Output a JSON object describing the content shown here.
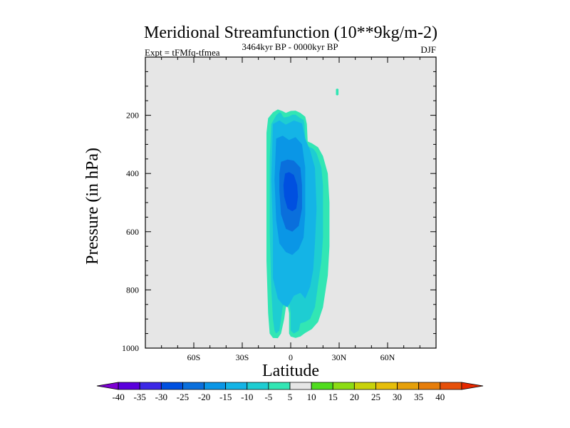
{
  "chart_data": {
    "type": "heatmap",
    "title": "Meridional Streamfunction (10**9kg/m-2)",
    "subtitle_left": "Expt = tFMfq-tfmea",
    "subtitle_center": "3464kyr BP - 0000kyr BP",
    "subtitle_right": "DJF",
    "xlabel": "Latitude",
    "ylabel": "Pressure (in hPa)",
    "xlim": [
      -90,
      90
    ],
    "ylim": [
      1000,
      0
    ],
    "x_ticks": [
      {
        "value": -60,
        "label": "60S"
      },
      {
        "value": -30,
        "label": "30S"
      },
      {
        "value": 0,
        "label": "0"
      },
      {
        "value": 30,
        "label": "30N"
      },
      {
        "value": 60,
        "label": "60N"
      }
    ],
    "y_ticks": [
      {
        "value": 200,
        "label": "200"
      },
      {
        "value": 400,
        "label": "400"
      },
      {
        "value": 600,
        "label": "600"
      },
      {
        "value": 800,
        "label": "800"
      },
      {
        "value": 1000,
        "label": "1000"
      }
    ],
    "background_color": "#e6e6e6",
    "contour_levels": [
      {
        "level": -30,
        "color": "#0050e0",
        "polygon": [
          [
            -3.5,
            400
          ],
          [
            -1,
            395
          ],
          [
            2,
            405
          ],
          [
            4,
            440
          ],
          [
            4.5,
            480
          ],
          [
            3.5,
            520
          ],
          [
            1,
            530
          ],
          [
            -2,
            520
          ],
          [
            -4,
            480
          ],
          [
            -4.5,
            440
          ]
        ]
      },
      {
        "level": -25,
        "color": "#0a6fdc",
        "polygon": [
          [
            -6,
            360
          ],
          [
            -2,
            352
          ],
          [
            2,
            356
          ],
          [
            6,
            380
          ],
          [
            7,
            440
          ],
          [
            7,
            520
          ],
          [
            5,
            580
          ],
          [
            1,
            600
          ],
          [
            -3,
            590
          ],
          [
            -6,
            540
          ],
          [
            -7,
            460
          ],
          [
            -7,
            400
          ]
        ]
      },
      {
        "level": -20,
        "color": "#0a96e6",
        "polygon": [
          [
            -9,
            280
          ],
          [
            -5,
            270
          ],
          [
            -1,
            285
          ],
          [
            3,
            275
          ],
          [
            7,
            300
          ],
          [
            9,
            380
          ],
          [
            9,
            540
          ],
          [
            8,
            620
          ],
          [
            5,
            660
          ],
          [
            1,
            680
          ],
          [
            -3,
            670
          ],
          [
            -7,
            640
          ],
          [
            -9,
            560
          ],
          [
            -10,
            420
          ]
        ]
      },
      {
        "level": -15,
        "color": "#14b4e6",
        "polygon": [
          [
            -11,
            230
          ],
          [
            -7,
            218
          ],
          [
            -3,
            232
          ],
          [
            2,
            218
          ],
          [
            7,
            228
          ],
          [
            9,
            280
          ],
          [
            12,
            320
          ],
          [
            15,
            380
          ],
          [
            16,
            520
          ],
          [
            15,
            640
          ],
          [
            14,
            730
          ],
          [
            12,
            790
          ],
          [
            9,
            830
          ],
          [
            6,
            810
          ],
          [
            2,
            820
          ],
          [
            -2,
            860
          ],
          [
            -5,
            850
          ],
          [
            -8,
            830
          ],
          [
            -11,
            760
          ],
          [
            -11,
            600
          ],
          [
            -12,
            420
          ]
        ]
      },
      {
        "level": -10,
        "color": "#1ecdd2",
        "polygon": [
          [
            -9,
            200
          ],
          [
            -7,
            190
          ],
          [
            -6,
            192
          ],
          [
            -5,
            203
          ],
          [
            -4,
            208
          ],
          [
            -1,
            204
          ],
          [
            1,
            198
          ],
          [
            3,
            198
          ],
          [
            6,
            210
          ],
          [
            8,
            216
          ],
          [
            8.5,
            230
          ],
          [
            9,
            290
          ],
          [
            10,
            305
          ],
          [
            14,
            315
          ],
          [
            16,
            330
          ],
          [
            19,
            380
          ],
          [
            20,
            440
          ],
          [
            20,
            620
          ],
          [
            19,
            700
          ],
          [
            17,
            780
          ],
          [
            15,
            860
          ],
          [
            12,
            900
          ],
          [
            9,
            910
          ],
          [
            6,
            915
          ],
          [
            5,
            940
          ],
          [
            2,
            950
          ],
          [
            0,
            940
          ],
          [
            0,
            880
          ],
          [
            -1,
            840
          ],
          [
            -3,
            830
          ],
          [
            -5,
            860
          ],
          [
            -6,
            900
          ],
          [
            -7,
            940
          ],
          [
            -9,
            950
          ],
          [
            -10,
            940
          ],
          [
            -11,
            900
          ],
          [
            -12,
            800
          ],
          [
            -13,
            600
          ],
          [
            -13,
            350
          ],
          [
            -12,
            230
          ]
        ]
      },
      {
        "level": -5,
        "color": "#32e6b4",
        "polygon": [
          [
            -11,
            190
          ],
          [
            -8,
            180
          ],
          [
            -5,
            186
          ],
          [
            -3,
            192
          ],
          [
            0,
            185
          ],
          [
            3,
            184
          ],
          [
            6,
            192
          ],
          [
            9,
            205
          ],
          [
            10,
            230
          ],
          [
            10.5,
            290
          ],
          [
            13,
            296
          ],
          [
            17,
            310
          ],
          [
            20,
            340
          ],
          [
            23,
            400
          ],
          [
            24,
            500
          ],
          [
            24,
            650
          ],
          [
            23,
            750
          ],
          [
            20,
            860
          ],
          [
            17,
            910
          ],
          [
            13,
            935
          ],
          [
            9,
            948
          ],
          [
            6,
            960
          ],
          [
            3,
            965
          ],
          [
            0,
            960
          ],
          [
            -1,
            950
          ],
          [
            -1,
            880
          ],
          [
            -2,
            850
          ],
          [
            -3,
            860
          ],
          [
            -4,
            900
          ],
          [
            -6,
            950
          ],
          [
            -8,
            966
          ],
          [
            -11,
            965
          ],
          [
            -13,
            950
          ],
          [
            -14,
            880
          ],
          [
            -15,
            700
          ],
          [
            -15,
            450
          ],
          [
            -15,
            260
          ],
          [
            -14,
            210
          ]
        ]
      },
      {
        "level": -5,
        "color": "#32e6b4",
        "polygon": [
          [
            28,
            110
          ],
          [
            28.8,
            108
          ],
          [
            29.6,
            110
          ],
          [
            29.6,
            130
          ],
          [
            28.8,
            132
          ],
          [
            28,
            130
          ]
        ]
      }
    ],
    "colorbar": {
      "levels": [
        -40,
        -35,
        -30,
        -25,
        -20,
        -15,
        -10,
        -5,
        5,
        10,
        15,
        20,
        25,
        30,
        35,
        40
      ],
      "labels": [
        "-40",
        "-35",
        "-30",
        "-25",
        "-20",
        "-15",
        "-10",
        "-5",
        "5",
        "10",
        "15",
        "20",
        "25",
        "30",
        "35",
        "40"
      ],
      "colors": [
        "#7d00d2",
        "#5a00dc",
        "#3c28e6",
        "#0050e0",
        "#0a6fdc",
        "#0a96e6",
        "#14b4e6",
        "#1ecdd2",
        "#32e6b4",
        "#e6e6e6",
        "#50dc1e",
        "#8cdc14",
        "#c8d20a",
        "#e6be0a",
        "#e6a00a",
        "#e67d0a",
        "#e6500a",
        "#e62800"
      ]
    }
  }
}
